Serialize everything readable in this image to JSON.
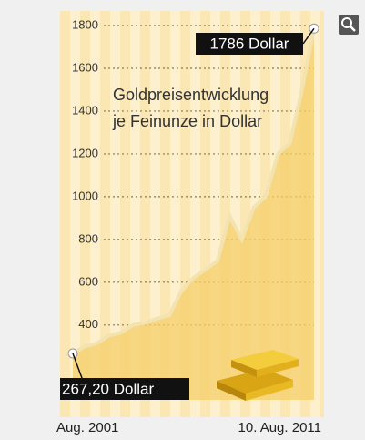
{
  "chart_data": {
    "type": "area",
    "title": "Goldpreisentwicklung",
    "subtitle": "je Feinunze in Dollar",
    "categories": [
      "Aug. 2001",
      null,
      null,
      null,
      null,
      null,
      null,
      null,
      null,
      null,
      null,
      null,
      null,
      null,
      null,
      null,
      null,
      null,
      null,
      null,
      "10. Aug. 2011"
    ],
    "values": [
      267.2,
      300,
      315,
      350,
      365,
      400,
      410,
      430,
      445,
      560,
      620,
      660,
      700,
      910,
      800,
      950,
      1000,
      1200,
      1250,
      1500,
      1786
    ],
    "start_label": "267,20 Dollar",
    "end_label": "1786 Dollar",
    "color": "#f5cf6a",
    "line_color": "#f2e3b0",
    "ylim": [
      50,
      1800
    ],
    "yticks": [
      400,
      600,
      800,
      1000,
      1200,
      1400,
      1600,
      1800
    ],
    "grid": true
  }
}
